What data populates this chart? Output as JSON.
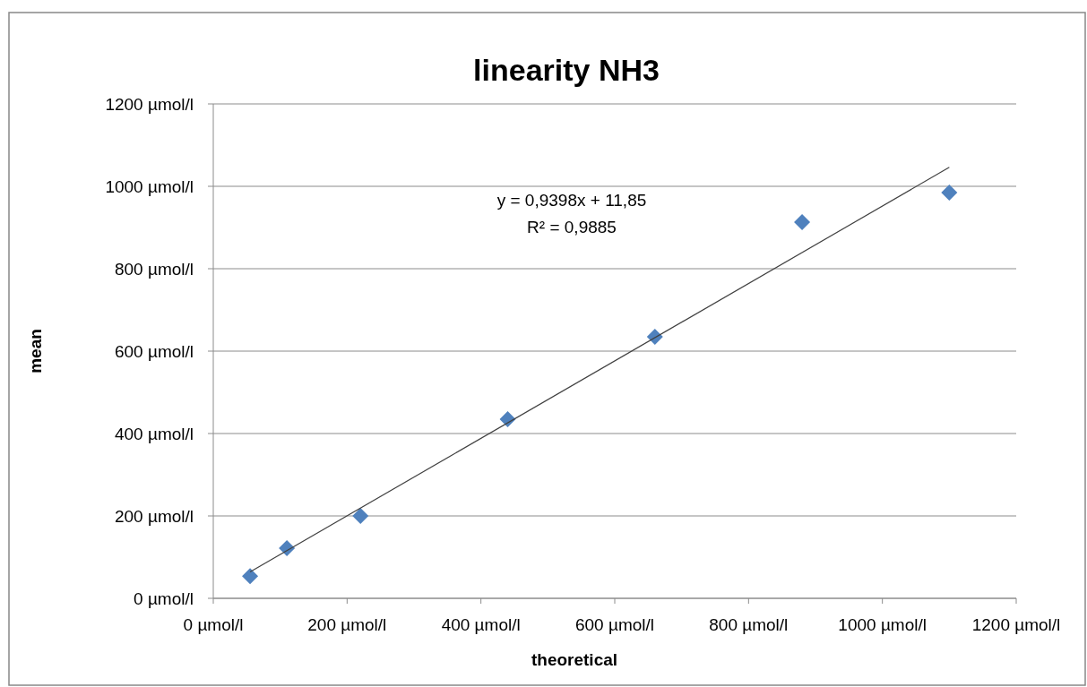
{
  "chart_data": {
    "type": "scatter",
    "title": "linearity NH3",
    "xlabel": "theoretical",
    "ylabel": "mean",
    "xlim": [
      0,
      1200
    ],
    "ylim": [
      0,
      1200
    ],
    "xticks": [
      {
        "value": 0,
        "label": "0 µmol/l"
      },
      {
        "value": 200,
        "label": "200 µmol/l"
      },
      {
        "value": 400,
        "label": "400 µmol/l"
      },
      {
        "value": 600,
        "label": "600 µmol/l"
      },
      {
        "value": 800,
        "label": "800 µmol/l"
      },
      {
        "value": 1000,
        "label": "1000 µmol/l"
      },
      {
        "value": 1200,
        "label": "1200 µmol/l"
      }
    ],
    "yticks": [
      {
        "value": 0,
        "label": "0 µmol/l"
      },
      {
        "value": 200,
        "label": "200 µmol/l"
      },
      {
        "value": 400,
        "label": "400 µmol/l"
      },
      {
        "value": 600,
        "label": "600 µmol/l"
      },
      {
        "value": 800,
        "label": "800 µmol/l"
      },
      {
        "value": 1000,
        "label": "1000 µmol/l"
      },
      {
        "value": 1200,
        "label": "1200 µmol/l"
      }
    ],
    "grid": "y",
    "series": [
      {
        "marker": "diamond",
        "color": "#4f81bd",
        "x": [
          55,
          110,
          220,
          440,
          660,
          880,
          1100
        ],
        "values": [
          54,
          122,
          200,
          435,
          635,
          913,
          985
        ]
      },
      {
        "type": "line",
        "color": "#404040",
        "x": [
          55,
          1100
        ],
        "values": [
          64,
          1046
        ]
      }
    ],
    "annotations": [
      "y = 0,9398x + 11,85",
      "R² = 0,9885"
    ]
  }
}
